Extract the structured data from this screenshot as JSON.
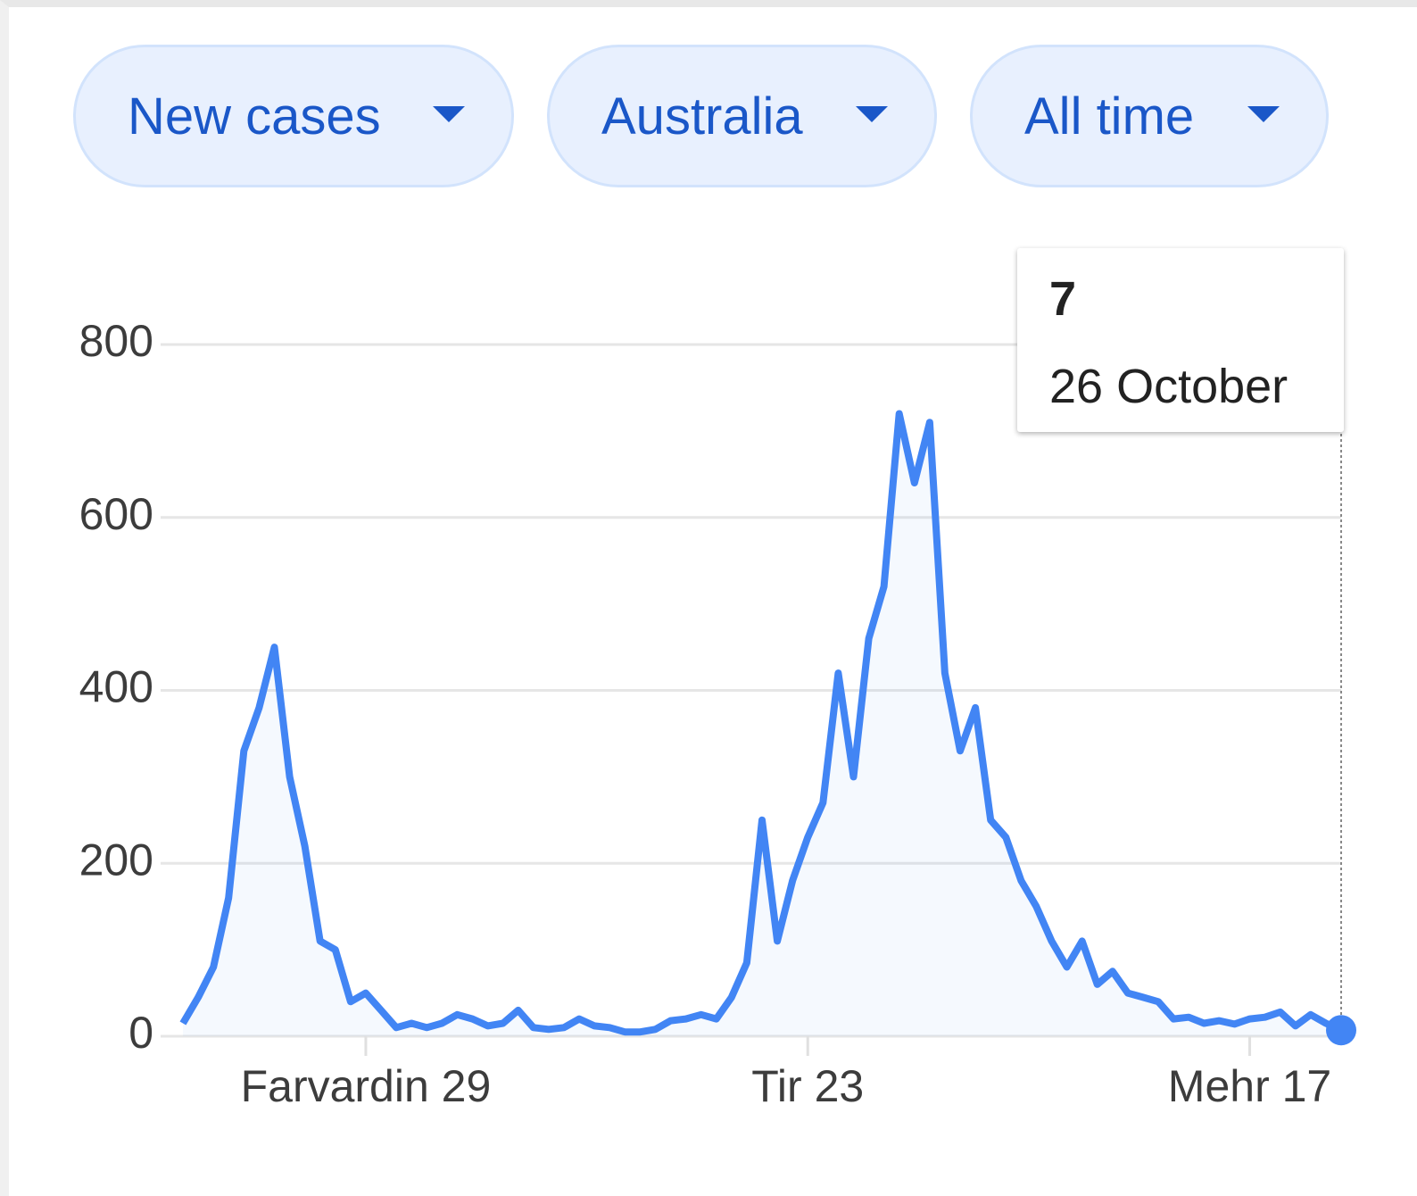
{
  "filters": [
    "New cases",
    "Australia",
    "All time"
  ],
  "chart_data": {
    "type": "line",
    "categories": [
      null,
      null,
      null,
      null,
      null,
      null,
      null,
      null,
      null,
      null,
      null,
      null,
      "Farvardin 29",
      null,
      null,
      null,
      null,
      null,
      null,
      null,
      null,
      null,
      null,
      null,
      null,
      null,
      null,
      null,
      null,
      null,
      null,
      null,
      null,
      null,
      null,
      null,
      null,
      null,
      null,
      null,
      null,
      "Tir 23",
      null,
      null,
      null,
      null,
      null,
      null,
      null,
      null,
      null,
      null,
      null,
      null,
      null,
      null,
      null,
      null,
      null,
      null,
      null,
      null,
      null,
      null,
      null,
      null,
      null,
      null,
      null,
      null,
      "Mehr 17",
      null,
      null,
      null,
      null,
      null,
      null
    ],
    "values": [
      15,
      45,
      80,
      160,
      330,
      380,
      450,
      300,
      220,
      110,
      100,
      40,
      50,
      30,
      10,
      15,
      10,
      15,
      25,
      20,
      12,
      15,
      30,
      10,
      8,
      10,
      20,
      12,
      10,
      5,
      5,
      8,
      18,
      20,
      25,
      20,
      45,
      85,
      250,
      110,
      180,
      230,
      270,
      420,
      300,
      460,
      520,
      720,
      640,
      710,
      420,
      330,
      380,
      250,
      230,
      180,
      150,
      110,
      80,
      110,
      60,
      75,
      50,
      45,
      40,
      20,
      22,
      15,
      18,
      14,
      20,
      22,
      28,
      12,
      25,
      15,
      7
    ],
    "color": "#4285f4",
    "ylim": [
      0,
      800
    ],
    "yticks": [
      0,
      200,
      400,
      600,
      800
    ],
    "grid": true,
    "tooltip_date": "26 October"
  }
}
